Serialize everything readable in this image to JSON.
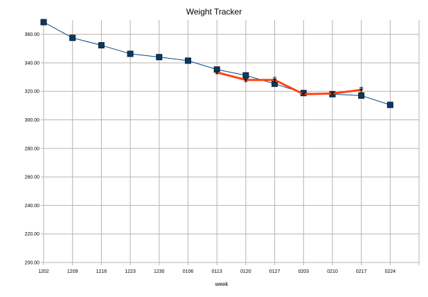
{
  "chart_data": {
    "type": "line",
    "title": "Weight Tracker",
    "xlabel": "week",
    "ylabel": "",
    "categories": [
      "1202",
      "1209",
      "1216",
      "1223",
      "1230",
      "0106",
      "0113",
      "0120",
      "0127",
      "0203",
      "0210",
      "0217",
      "0224"
    ],
    "ylim": [
      200,
      370
    ],
    "yticks": [
      200,
      220,
      240,
      260,
      280,
      300,
      320,
      340,
      360
    ],
    "ytick_labels": [
      "200.00",
      "220.00",
      "240.00",
      "260.00",
      "280.00",
      "300.00",
      "320.00",
      "340.00",
      "360.00"
    ],
    "grid": true,
    "legend": "none",
    "series": [
      {
        "values": [
          368.5,
          357.5,
          352.3,
          346.3,
          344.0,
          341.5,
          335.3,
          331.2,
          325.3,
          318.8,
          318.0,
          317.0,
          310.5
        ],
        "color": "#004586",
        "marker": "square",
        "marker_color": "#003b6f"
      },
      {
        "values": [
          null,
          null,
          null,
          null,
          null,
          null,
          333.3,
          328.0,
          328.0,
          318.0,
          318.5,
          321.0,
          null
        ],
        "color": "#ff420e",
        "marker": "triangle",
        "marker_color": "#222222",
        "error": [
          null,
          null,
          null,
          null,
          null,
          null,
          1.0,
          1.2,
          1.8,
          1.0,
          1.0,
          1.8,
          null
        ]
      }
    ]
  }
}
